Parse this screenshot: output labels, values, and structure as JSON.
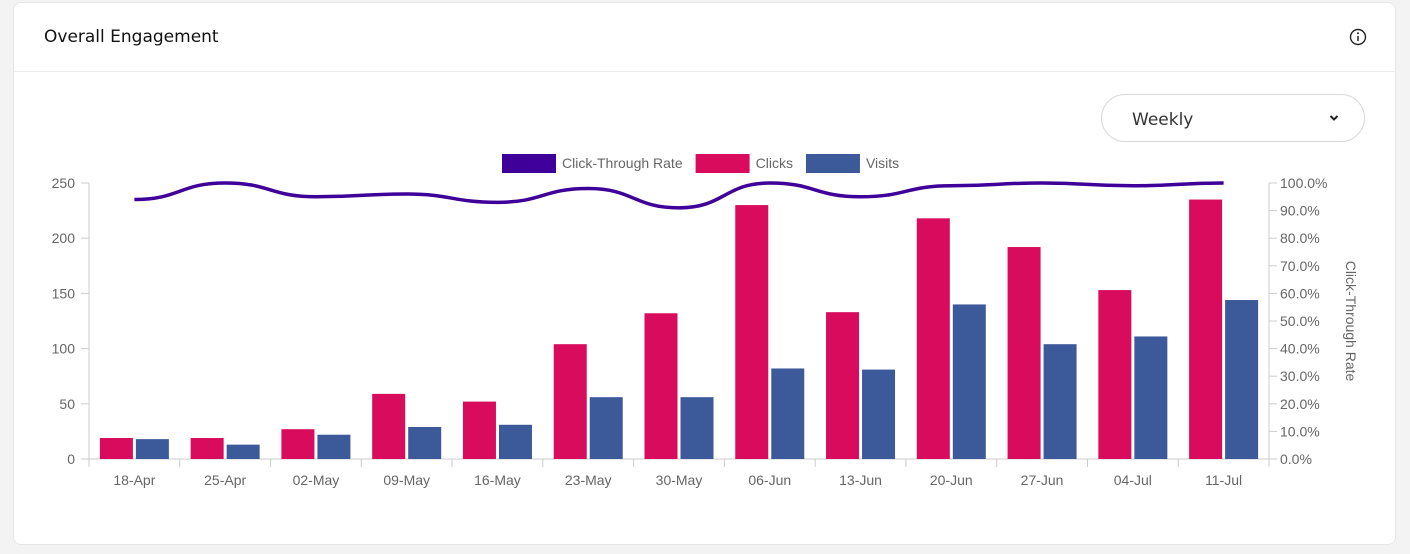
{
  "card": {
    "title": "Overall Engagement"
  },
  "icons": {
    "info": "info-icon",
    "dropdown": "chevron-down-icon"
  },
  "period_select": {
    "selected": "Weekly"
  },
  "colors": {
    "ctr": "#3f0099",
    "clicks": "#d80b5d",
    "visits": "#3c5a9a"
  },
  "chart_data": {
    "type": "bar",
    "title": "",
    "categories": [
      "18-Apr",
      "25-Apr",
      "02-May",
      "09-May",
      "16-May",
      "23-May",
      "30-May",
      "06-Jun",
      "13-Jun",
      "20-Jun",
      "27-Jun",
      "04-Jul",
      "11-Jul"
    ],
    "series": [
      {
        "name": "Clicks",
        "type": "bar",
        "axis": "left",
        "values": [
          19,
          19,
          27,
          59,
          52,
          104,
          132,
          230,
          133,
          218,
          192,
          153,
          235
        ]
      },
      {
        "name": "Visits",
        "type": "bar",
        "axis": "left",
        "values": [
          18,
          13,
          22,
          29,
          31,
          56,
          56,
          82,
          81,
          140,
          104,
          111,
          144
        ]
      },
      {
        "name": "Click-Through Rate",
        "type": "line",
        "axis": "right",
        "values": [
          94,
          100,
          95,
          96,
          93,
          98,
          91,
          100,
          95,
          99,
          100,
          99,
          100
        ]
      }
    ],
    "legend_order": [
      "Click-Through Rate",
      "Clicks",
      "Visits"
    ],
    "legend_position": "top-center",
    "y_left": {
      "label": "",
      "min": 0,
      "max": 250,
      "ticks": [
        "0",
        "50",
        "100",
        "150",
        "200",
        "250"
      ],
      "tick_values": [
        0,
        50,
        100,
        150,
        200,
        250
      ]
    },
    "y_right": {
      "label": "Click-Through Rate",
      "min": 0,
      "max": 100,
      "ticks": [
        "0.0%",
        "10.0%",
        "20.0%",
        "30.0%",
        "40.0%",
        "50.0%",
        "60.0%",
        "70.0%",
        "80.0%",
        "90.0%",
        "100.0%"
      ],
      "tick_values": [
        0,
        10,
        20,
        30,
        40,
        50,
        60,
        70,
        80,
        90,
        100
      ]
    },
    "grid": false
  }
}
